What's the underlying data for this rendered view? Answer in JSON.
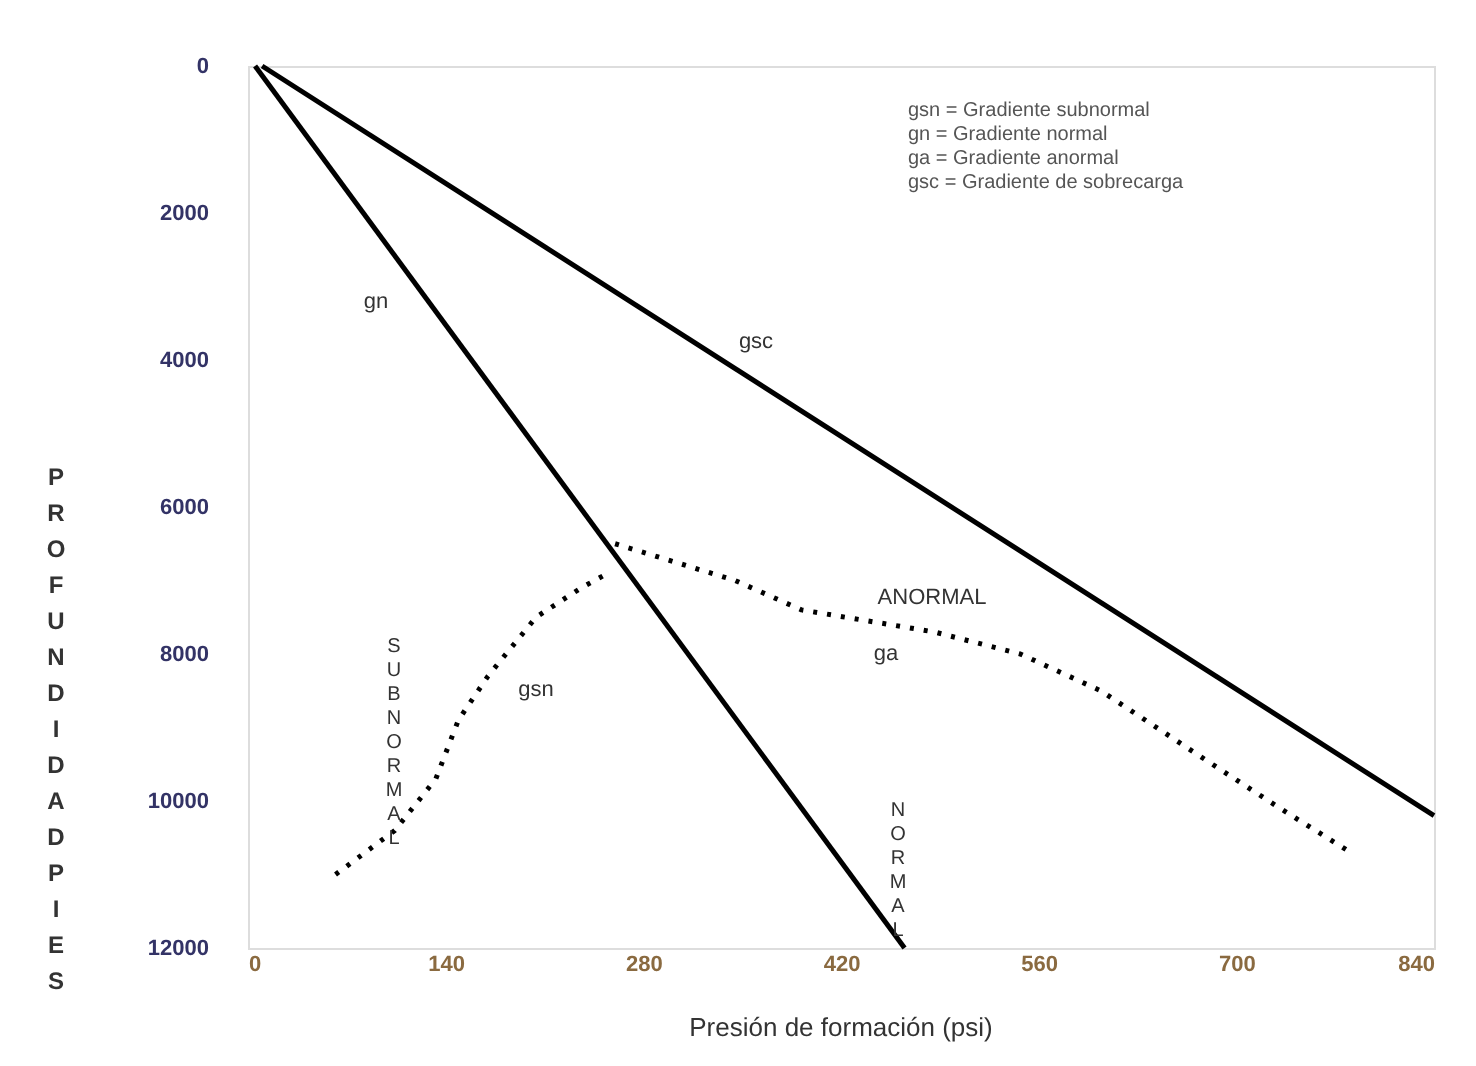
{
  "chart_data": {
    "type": "line",
    "xlabel": "Presión de formación (psi)",
    "ylabel": "PROFUNDIDAD PIES",
    "xlim": [
      0,
      840
    ],
    "xticks": [
      0,
      140,
      280,
      420,
      560,
      700,
      840
    ],
    "ylim": [
      12000,
      0
    ],
    "yticks": [
      0,
      2000,
      4000,
      6000,
      8000,
      10000,
      12000
    ],
    "grid": false,
    "marker": "none",
    "series": [
      {
        "color": "#000000",
        "line_style": "solid",
        "x": [
          5,
          465
        ],
        "values": [
          0,
          12000
        ]
      },
      {
        "color": "#000000",
        "line_style": "solid",
        "x": [
          10,
          840
        ],
        "values": [
          0,
          10200
        ]
      },
      {
        "color": "#000000",
        "line_style": "dotted",
        "x": [
          62,
          104,
          133,
          149,
          170,
          204,
          236,
          255
        ],
        "values": [
          11000,
          10400,
          9700,
          8900,
          8300,
          7500,
          7100,
          6900
        ]
      },
      {
        "color": "#000000",
        "line_style": "dotted",
        "x": [
          260,
          345,
          392,
          486,
          547,
          604,
          675,
          731,
          781
        ],
        "values": [
          6500,
          7000,
          7400,
          7700,
          8000,
          8500,
          9400,
          10100,
          10700
        ]
      }
    ],
    "annotations": [
      "gn",
      "gsc",
      "gsn",
      "ga",
      "ANORMAL",
      "SUBNORMAL",
      "NORMAL",
      "gsn = Gradiente subnormal",
      "gn = Gradiente normal",
      "ga = Gradiente anormal",
      "gsc = Gradiente de sobrecarga"
    ]
  }
}
